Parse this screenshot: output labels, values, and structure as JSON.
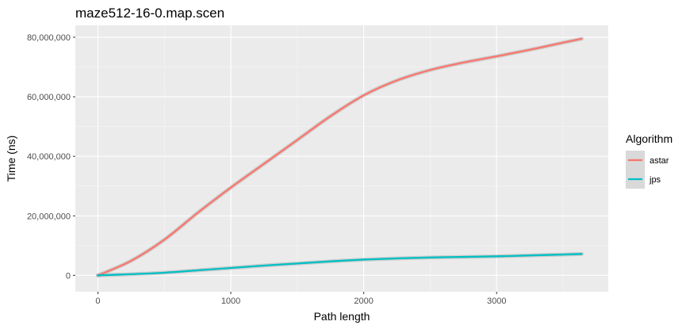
{
  "chart_data": {
    "type": "line",
    "title": "maze512-16-0.map.scen",
    "xlabel": "Path length",
    "ylabel": "Time (ns)",
    "xlim": [
      -170,
      3840
    ],
    "ylim": [
      -5500000,
      84000000
    ],
    "x_ticks": [
      0,
      1000,
      2000,
      3000
    ],
    "x_tick_labels": [
      "0",
      "1000",
      "2000",
      "3000"
    ],
    "y_ticks": [
      0,
      20000000,
      40000000,
      60000000,
      80000000
    ],
    "y_tick_labels": [
      "0",
      "20,000,000",
      "40,000,000",
      "60,000,000",
      "80,000,000"
    ],
    "grid": true,
    "legend": {
      "title": "Algorithm",
      "position": "right"
    },
    "series": [
      {
        "name": "astar",
        "color": "#F8766D",
        "x": [
          0,
          250,
          500,
          750,
          1000,
          1250,
          1500,
          1750,
          2000,
          2250,
          2500,
          2750,
          3000,
          3250,
          3500,
          3640
        ],
        "y": [
          0,
          4900000,
          12000000,
          21000000,
          29500000,
          37500000,
          45500000,
          53500000,
          60500000,
          65500000,
          69000000,
          71500000,
          73600000,
          75800000,
          78200000,
          79500000
        ]
      },
      {
        "name": "jps",
        "color": "#00BFC4",
        "x": [
          0,
          250,
          500,
          750,
          1000,
          1250,
          1500,
          1750,
          2000,
          2250,
          2500,
          2750,
          3000,
          3250,
          3500,
          3640
        ],
        "y": [
          0,
          400000,
          900000,
          1700000,
          2500000,
          3300000,
          4000000,
          4700000,
          5300000,
          5700000,
          6000000,
          6200000,
          6400000,
          6700000,
          7000000,
          7200000
        ]
      }
    ]
  }
}
